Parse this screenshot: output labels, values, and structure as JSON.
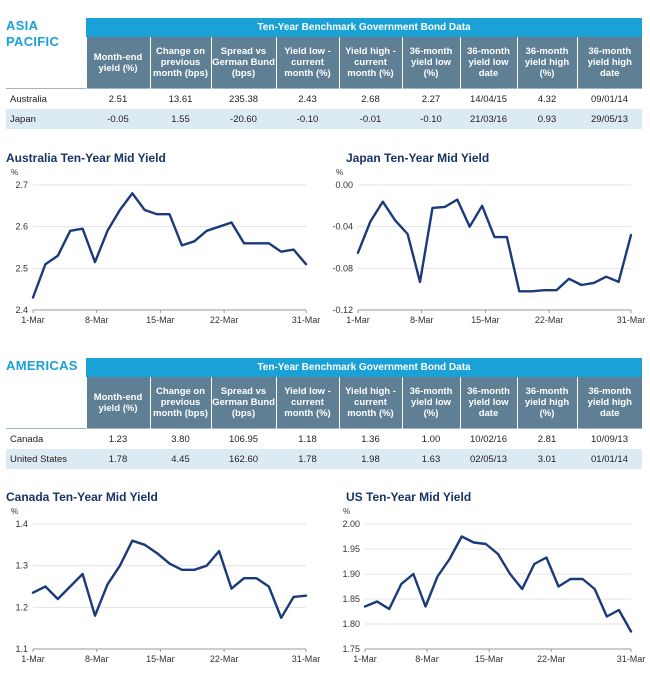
{
  "sections": [
    {
      "region_lines": [
        "ASIA",
        "PACIFIC"
      ],
      "table": {
        "title": "Ten-Year Benchmark Government Bond Data",
        "headers": [
          "Month-end yield (%)",
          "Change on previous month (bps)",
          "Spread vs German Bund (bps)",
          "Yield low - current month (%)",
          "Yield high - current month (%)",
          "36-month yield low (%)",
          "36-month yield low date",
          "36-month yield high (%)",
          "36-month yield high date"
        ],
        "rows": [
          {
            "country": "Australia",
            "values": [
              "2.51",
              "13.61",
              "235.38",
              "2.43",
              "2.68",
              "2.27",
              "14/04/15",
              "4.32",
              "09/01/14"
            ]
          },
          {
            "country": "Japan",
            "values": [
              "-0.05",
              "1.55",
              "-20.60",
              "-0.10",
              "-0.01",
              "-0.10",
              "21/03/16",
              "0.93",
              "29/05/13"
            ]
          }
        ]
      }
    },
    {
      "region_lines": [
        "AMERICAS"
      ],
      "table": {
        "title": "Ten-Year Benchmark Government Bond Data",
        "headers": [
          "Month-end yield (%)",
          "Change on previous month (bps)",
          "Spread vs German Bund (bps)",
          "Yield low - current month (%)",
          "Yield high - current month (%)",
          "36-month yield low (%)",
          "36-month yield low date",
          "36-month yield high (%)",
          "36-month yield high date"
        ],
        "rows": [
          {
            "country": "Canada",
            "values": [
              "1.23",
              "3.80",
              "106.95",
              "1.18",
              "1.36",
              "1.00",
              "10/02/16",
              "2.81",
              "10/09/13"
            ]
          },
          {
            "country": "United States",
            "values": [
              "1.78",
              "4.45",
              "162.60",
              "1.78",
              "1.98",
              "1.63",
              "02/05/13",
              "3.01",
              "01/01/14"
            ]
          }
        ]
      }
    }
  ],
  "chart_data": [
    {
      "type": "line",
      "title": "Australia Ten-Year Mid Yield",
      "ylabel": "%",
      "ylim": [
        2.4,
        2.7
      ],
      "yticks": [
        "2.4",
        "2.5",
        "2.6",
        "2.7"
      ],
      "xticks": [
        "1-Mar",
        "8-Mar",
        "15-Mar",
        "22-Mar",
        "31-Mar"
      ],
      "xtick_positions": [
        1,
        8,
        15,
        22,
        31
      ],
      "x": [
        1,
        2,
        3,
        4,
        5,
        6,
        7,
        8,
        9,
        10,
        11,
        12,
        13,
        14,
        15,
        16,
        17,
        18,
        19,
        20,
        21,
        22,
        23
      ],
      "values": [
        2.43,
        2.51,
        2.53,
        2.59,
        2.595,
        2.515,
        2.59,
        2.64,
        2.68,
        2.64,
        2.63,
        2.63,
        2.555,
        2.565,
        2.59,
        2.6,
        2.61,
        2.56,
        2.56,
        2.56,
        2.54,
        2.545,
        2.51
      ],
      "color": "#1a3a7a"
    },
    {
      "type": "line",
      "title": "Japan Ten-Year Mid Yield",
      "ylabel": "%",
      "ylim": [
        -0.12,
        0.0
      ],
      "yticks": [
        "-0.12",
        "-0.08",
        "-0.04",
        "0.00"
      ],
      "xticks": [
        "1-Mar",
        "8-Mar",
        "15-Mar",
        "22-Mar",
        "31-Mar"
      ],
      "xtick_positions": [
        1,
        8,
        15,
        22,
        31
      ],
      "x": [
        1,
        2,
        3,
        4,
        5,
        6,
        7,
        8,
        9,
        10,
        11,
        12,
        13,
        14,
        15,
        16,
        17,
        18,
        19,
        20,
        21,
        22,
        23
      ],
      "values": [
        -0.065,
        -0.035,
        -0.016,
        -0.034,
        -0.047,
        -0.093,
        -0.022,
        -0.021,
        -0.014,
        -0.04,
        -0.02,
        -0.05,
        -0.05,
        -0.102,
        -0.102,
        -0.101,
        -0.101,
        -0.09,
        -0.096,
        -0.094,
        -0.088,
        -0.093,
        -0.048
      ],
      "color": "#1a3a7a"
    },
    {
      "type": "line",
      "title": "Canada Ten-Year Mid Yield",
      "ylabel": "%",
      "ylim": [
        1.1,
        1.4
      ],
      "yticks": [
        "1.1",
        "1.2",
        "1.3",
        "1.4"
      ],
      "xticks": [
        "1-Mar",
        "8-Mar",
        "15-Mar",
        "22-Mar",
        "31-Mar"
      ],
      "xtick_positions": [
        1,
        8,
        15,
        22,
        31
      ],
      "x": [
        1,
        2,
        3,
        4,
        5,
        6,
        7,
        8,
        9,
        10,
        11,
        12,
        13,
        14,
        15,
        16,
        17,
        18,
        19,
        20,
        21,
        22,
        23
      ],
      "values": [
        1.235,
        1.25,
        1.22,
        1.25,
        1.28,
        1.18,
        1.255,
        1.3,
        1.36,
        1.35,
        1.33,
        1.305,
        1.29,
        1.29,
        1.3,
        1.335,
        1.245,
        1.27,
        1.27,
        1.25,
        1.175,
        1.225,
        1.228
      ],
      "color": "#1a3a7a"
    },
    {
      "type": "line",
      "title": "US Ten-Year Mid Yield",
      "ylabel": "%",
      "ylim": [
        1.75,
        2.0
      ],
      "yticks": [
        "1.75",
        "1.80",
        "1.85",
        "1.90",
        "1.95",
        "2.00"
      ],
      "xticks": [
        "1-Mar",
        "8-Mar",
        "15-Mar",
        "22-Mar",
        "31-Mar"
      ],
      "xtick_positions": [
        1,
        8,
        15,
        22,
        31
      ],
      "x": [
        1,
        2,
        3,
        4,
        5,
        6,
        7,
        8,
        9,
        10,
        11,
        12,
        13,
        14,
        15,
        16,
        17,
        18,
        19,
        20,
        21,
        22,
        23
      ],
      "values": [
        1.835,
        1.845,
        1.83,
        1.88,
        1.9,
        1.835,
        1.895,
        1.93,
        1.975,
        1.963,
        1.96,
        1.94,
        1.9,
        1.87,
        1.92,
        1.933,
        1.875,
        1.89,
        1.89,
        1.87,
        1.815,
        1.828,
        1.785
      ],
      "color": "#1a3a7a"
    }
  ]
}
